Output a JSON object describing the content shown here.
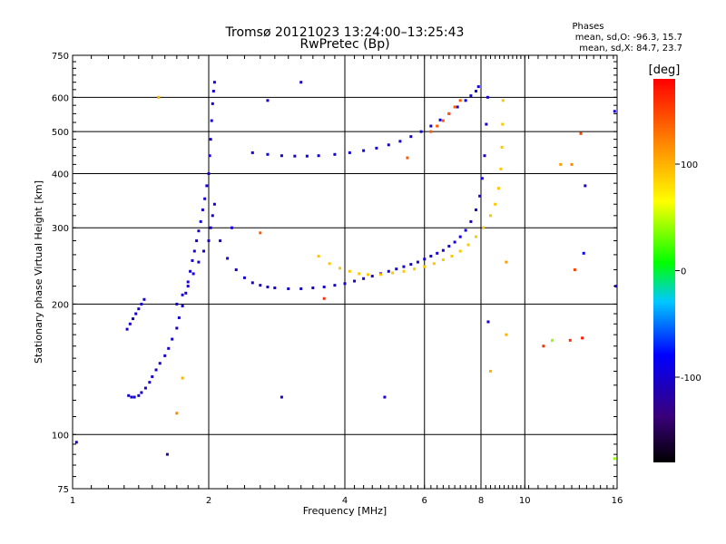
{
  "chart_data": {
    "type": "scatter",
    "title": "Tromsø 20121023 13:24:00–13:25:43",
    "subtitle": "RwPretec (Bp)",
    "xlabel": "Frequency [MHz]",
    "ylabel": "Stationary phase Virtual Height [km]",
    "x_scale": "log",
    "y_scale": "log",
    "xlim": [
      1,
      16
    ],
    "ylim": [
      75,
      750
    ],
    "xticks": [
      1,
      2,
      4,
      6,
      8,
      10,
      16
    ],
    "xtick_labels": [
      "1",
      "2",
      "4",
      "6",
      "8",
      "10",
      "16"
    ],
    "yticks": [
      75,
      100,
      200,
      300,
      400,
      500,
      600,
      750
    ],
    "ytick_labels": [
      "75",
      "100",
      "200",
      "300",
      "400",
      "500",
      "600",
      "750"
    ],
    "grid": true,
    "stats_header": "Phases",
    "stats_lines": [
      "mean, sd,O: -96.3, 15.7",
      "mean, sd,X:  84.7, 23.7"
    ],
    "colorbar": {
      "label": "[deg]",
      "range": [
        -180,
        180
      ],
      "ticks": [
        -100,
        0,
        100
      ],
      "tick_labels": [
        "-100",
        "0",
        "100"
      ]
    },
    "series": [
      {
        "x": [
          1.33,
          1.35,
          1.37,
          1.4,
          1.42,
          1.45,
          1.48,
          1.5,
          1.53,
          1.56,
          1.6,
          1.63,
          1.66,
          1.7,
          1.72,
          1.75,
          1.78,
          1.8,
          1.82,
          1.84,
          1.86,
          1.88,
          1.9,
          1.92,
          1.94,
          1.96,
          1.98,
          2.0,
          2.01,
          2.02,
          2.03,
          2.04,
          2.05,
          2.06
        ],
        "y": [
          123,
          122,
          122,
          123,
          125,
          128,
          132,
          136,
          141,
          146,
          152,
          158,
          166,
          176,
          186,
          198,
          212,
          225,
          238,
          252,
          265,
          280,
          295,
          310,
          330,
          350,
          375,
          400,
          440,
          480,
          530,
          580,
          620,
          650
        ],
        "phase": -100
      },
      {
        "x": [
          1.7,
          1.75,
          1.8,
          1.85,
          1.9,
          1.95,
          2.0,
          2.02,
          2.04,
          2.06
        ],
        "y": [
          200,
          210,
          220,
          235,
          250,
          265,
          280,
          300,
          320,
          340
        ],
        "phase": -100
      },
      {
        "x": [
          1.32,
          1.34,
          1.36,
          1.38,
          1.4,
          1.42,
          1.44
        ],
        "y": [
          175,
          180,
          185,
          190,
          195,
          200,
          205
        ],
        "phase": -100
      },
      {
        "x": [
          2.12,
          2.2,
          2.3,
          2.4,
          2.5,
          2.6,
          2.7,
          2.8,
          3.0,
          3.2,
          3.4,
          3.6,
          3.8,
          4.0,
          4.2,
          4.4,
          4.6,
          4.8,
          5.0,
          5.2,
          5.4,
          5.6,
          5.8,
          6.0,
          6.2,
          6.4,
          6.6,
          6.8,
          7.0,
          7.2,
          7.4,
          7.6,
          7.8,
          7.95,
          8.05,
          8.15,
          8.22,
          8.28
        ],
        "y": [
          280,
          255,
          240,
          230,
          224,
          221,
          219,
          218,
          217,
          217,
          218,
          219,
          221,
          223,
          226,
          229,
          232,
          235,
          238,
          241,
          244,
          247,
          250,
          254,
          258,
          262,
          266,
          272,
          278,
          286,
          296,
          310,
          330,
          355,
          390,
          440,
          520,
          600
        ],
        "phase": -100
      },
      {
        "x": [
          2.5,
          2.7,
          2.9,
          3.1,
          3.3,
          3.5,
          3.8,
          4.1,
          4.4,
          4.7,
          5.0,
          5.3,
          5.6,
          5.9,
          6.2,
          6.5,
          6.8,
          7.1,
          7.4,
          7.6,
          7.8,
          7.9
        ],
        "y": [
          447,
          443,
          440,
          439,
          439,
          440,
          443,
          447,
          452,
          458,
          466,
          475,
          487,
          500,
          515,
          532,
          550,
          570,
          590,
          605,
          620,
          635
        ],
        "phase": -95
      },
      {
        "x": [
          3.5,
          3.7,
          3.9,
          4.1,
          4.3,
          4.5,
          4.8,
          5.1,
          5.4,
          5.7,
          6.0,
          6.3,
          6.6,
          6.9,
          7.2,
          7.5,
          7.8,
          8.1,
          8.4,
          8.6,
          8.75,
          8.85,
          8.9,
          8.93,
          8.95
        ],
        "y": [
          258,
          248,
          242,
          238,
          235,
          234,
          234,
          236,
          238,
          241,
          244,
          248,
          253,
          258,
          265,
          274,
          286,
          300,
          320,
          340,
          370,
          410,
          460,
          520,
          590
        ],
        "phase": 90
      },
      {
        "x": [
          6.2,
          6.4,
          6.6,
          6.8,
          7.0,
          7.2
        ],
        "y": [
          500,
          515,
          530,
          550,
          570,
          590
        ],
        "phase": 140
      }
    ],
    "scattered_points": [
      {
        "x": 1.55,
        "y": 600,
        "phase": 100
      },
      {
        "x": 1.02,
        "y": 96,
        "phase": -100
      },
      {
        "x": 1.62,
        "y": 90,
        "phase": -120
      },
      {
        "x": 2.7,
        "y": 590,
        "phase": -100
      },
      {
        "x": 3.2,
        "y": 650,
        "phase": -110
      },
      {
        "x": 2.9,
        "y": 122,
        "phase": -100
      },
      {
        "x": 4.9,
        "y": 122,
        "phase": -100
      },
      {
        "x": 8.3,
        "y": 182,
        "phase": -100
      },
      {
        "x": 8.4,
        "y": 140,
        "phase": 100
      },
      {
        "x": 9.1,
        "y": 170,
        "phase": 100
      },
      {
        "x": 9.1,
        "y": 250,
        "phase": 110
      },
      {
        "x": 11.5,
        "y": 165,
        "phase": 40
      },
      {
        "x": 12.6,
        "y": 165,
        "phase": 160
      },
      {
        "x": 13.4,
        "y": 167,
        "phase": 170
      },
      {
        "x": 13.5,
        "y": 262,
        "phase": -80
      },
      {
        "x": 12.9,
        "y": 240,
        "phase": 150
      },
      {
        "x": 11.0,
        "y": 160,
        "phase": 160
      },
      {
        "x": 15.8,
        "y": 557,
        "phase": -100
      },
      {
        "x": 15.9,
        "y": 220,
        "phase": -100
      },
      {
        "x": 15.8,
        "y": 88,
        "phase": 40
      },
      {
        "x": 13.3,
        "y": 495,
        "phase": 150
      },
      {
        "x": 13.6,
        "y": 375,
        "phase": -100
      },
      {
        "x": 12.7,
        "y": 420,
        "phase": 120
      },
      {
        "x": 12.0,
        "y": 420,
        "phase": 110
      },
      {
        "x": 5.5,
        "y": 435,
        "phase": 140
      },
      {
        "x": 1.75,
        "y": 135,
        "phase": 100
      },
      {
        "x": 1.7,
        "y": 112,
        "phase": 120
      },
      {
        "x": 2.25,
        "y": 300,
        "phase": -100
      },
      {
        "x": 2.6,
        "y": 292,
        "phase": 140
      },
      {
        "x": 3.6,
        "y": 206,
        "phase": 160
      }
    ]
  }
}
